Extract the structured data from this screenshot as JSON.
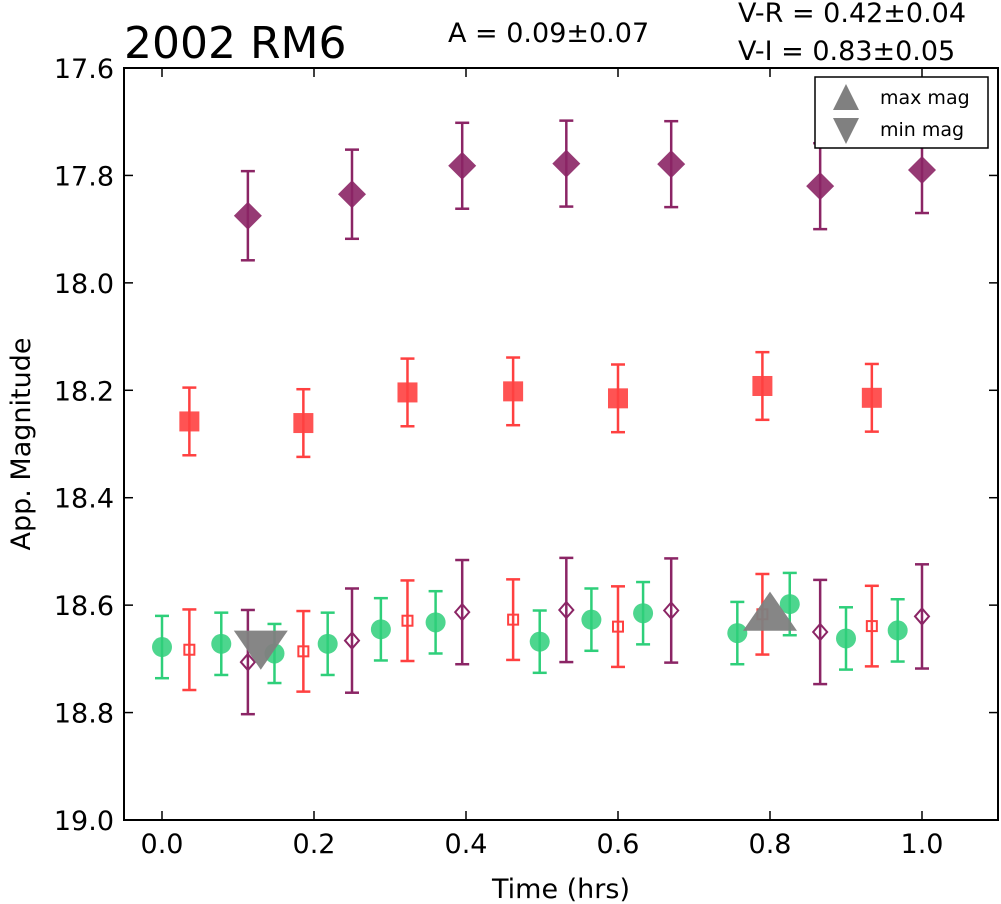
{
  "chart_data": {
    "type": "scatter",
    "title": "2002 RM6",
    "annotations": {
      "amplitude": "A  = 0.09±0.07",
      "v_r": "V-R = 0.42±0.04",
      "v_i": "V-I  = 0.83±0.05"
    },
    "xlabel": "Time (hrs)",
    "ylabel": "App. Magnitude",
    "xlim": [
      -0.05,
      1.1
    ],
    "ylim": [
      19.0,
      17.6
    ],
    "y_inverted": true,
    "x_ticks": [
      "0.0",
      "0.2",
      "0.4",
      "0.6",
      "0.8",
      "1.0"
    ],
    "y_ticks": [
      "17.6",
      "17.8",
      "18.0",
      "18.2",
      "18.4",
      "18.6",
      "18.8",
      "19.0"
    ],
    "grid": false,
    "legend": {
      "placement": "top-right",
      "entries": [
        {
          "label": "max mag",
          "marker": "triangle-up",
          "color": "#808080"
        },
        {
          "label": "min mag",
          "marker": "triangle-down",
          "color": "#808080"
        }
      ]
    },
    "series": [
      {
        "marker": "diamond",
        "filled": true,
        "color": "#8b2565",
        "points": [
          {
            "x": 0.113,
            "y": 17.875,
            "err": 0.083
          },
          {
            "x": 0.25,
            "y": 17.835,
            "err": 0.083
          },
          {
            "x": 0.395,
            "y": 17.782,
            "err": 0.08
          },
          {
            "x": 0.532,
            "y": 17.778,
            "err": 0.08
          },
          {
            "x": 0.67,
            "y": 17.779,
            "err": 0.08
          },
          {
            "x": 0.866,
            "y": 17.82,
            "err": 0.08
          },
          {
            "x": 1.0,
            "y": 17.79,
            "err": 0.08
          }
        ]
      },
      {
        "marker": "square",
        "filled": true,
        "color": "#ff4040",
        "points": [
          {
            "x": 0.036,
            "y": 18.258,
            "err": 0.063
          },
          {
            "x": 0.186,
            "y": 18.261,
            "err": 0.063
          },
          {
            "x": 0.323,
            "y": 18.204,
            "err": 0.063
          },
          {
            "x": 0.462,
            "y": 18.202,
            "err": 0.063
          },
          {
            "x": 0.6,
            "y": 18.215,
            "err": 0.063
          },
          {
            "x": 0.79,
            "y": 18.192,
            "err": 0.063
          },
          {
            "x": 0.934,
            "y": 18.214,
            "err": 0.063
          }
        ]
      },
      {
        "marker": "circle",
        "filled": true,
        "color": "#2ecf7a",
        "points": [
          {
            "x": 0.0,
            "y": 18.678,
            "err": 0.058
          },
          {
            "x": 0.078,
            "y": 18.672,
            "err": 0.058
          },
          {
            "x": 0.148,
            "y": 18.69,
            "err": 0.055
          },
          {
            "x": 0.218,
            "y": 18.672,
            "err": 0.058
          },
          {
            "x": 0.288,
            "y": 18.645,
            "err": 0.058
          },
          {
            "x": 0.36,
            "y": 18.632,
            "err": 0.058
          },
          {
            "x": 0.497,
            "y": 18.668,
            "err": 0.058
          },
          {
            "x": 0.565,
            "y": 18.627,
            "err": 0.058
          },
          {
            "x": 0.633,
            "y": 18.615,
            "err": 0.058
          },
          {
            "x": 0.757,
            "y": 18.652,
            "err": 0.058
          },
          {
            "x": 0.826,
            "y": 18.598,
            "err": 0.058
          },
          {
            "x": 0.9,
            "y": 18.662,
            "err": 0.058
          },
          {
            "x": 0.968,
            "y": 18.647,
            "err": 0.058
          }
        ]
      },
      {
        "marker": "square",
        "filled": false,
        "color": "#ff4040",
        "points": [
          {
            "x": 0.036,
            "y": 18.683,
            "err": 0.075
          },
          {
            "x": 0.186,
            "y": 18.686,
            "err": 0.075
          },
          {
            "x": 0.323,
            "y": 18.629,
            "err": 0.075
          },
          {
            "x": 0.462,
            "y": 18.627,
            "err": 0.075
          },
          {
            "x": 0.6,
            "y": 18.64,
            "err": 0.075
          },
          {
            "x": 0.79,
            "y": 18.617,
            "err": 0.075
          },
          {
            "x": 0.934,
            "y": 18.639,
            "err": 0.075
          }
        ]
      },
      {
        "marker": "diamond",
        "filled": false,
        "color": "#8b2565",
        "points": [
          {
            "x": 0.113,
            "y": 18.706,
            "err": 0.097
          },
          {
            "x": 0.25,
            "y": 18.666,
            "err": 0.097
          },
          {
            "x": 0.395,
            "y": 18.613,
            "err": 0.097
          },
          {
            "x": 0.532,
            "y": 18.609,
            "err": 0.097
          },
          {
            "x": 0.67,
            "y": 18.61,
            "err": 0.097
          },
          {
            "x": 0.866,
            "y": 18.65,
            "err": 0.097
          },
          {
            "x": 1.0,
            "y": 18.621,
            "err": 0.097
          }
        ]
      }
    ],
    "extrema": [
      {
        "type": "min mag",
        "marker": "triangle-down",
        "x": 0.13,
        "y": 18.67,
        "color": "#808080"
      },
      {
        "type": "max mag",
        "marker": "triangle-up",
        "x": 0.8,
        "y": 18.625,
        "color": "#808080"
      }
    ]
  }
}
